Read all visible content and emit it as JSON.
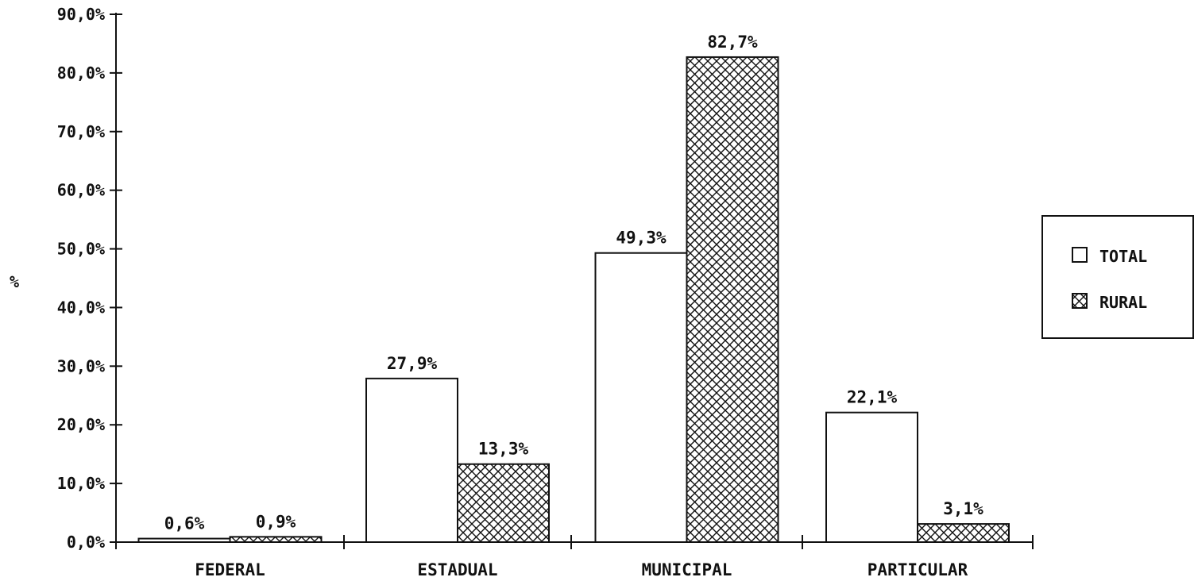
{
  "chart_data": {
    "type": "bar",
    "ylabel": "%",
    "ylim": [
      0,
      90
    ],
    "yticks": [
      "0,0%",
      "10,0%",
      "20,0%",
      "30,0%",
      "40,0%",
      "50,0%",
      "60,0%",
      "70,0%",
      "80,0%",
      "90,0%"
    ],
    "categories": [
      "FEDERAL",
      "ESTADUAL",
      "MUNICIPAL",
      "PARTICULAR"
    ],
    "series": [
      {
        "name": "TOTAL",
        "values": [
          0.6,
          27.9,
          49.3,
          22.1
        ],
        "labels": [
          "0,6%",
          "27,9%",
          "49,3%",
          "22,1%"
        ],
        "pattern": "white"
      },
      {
        "name": "RURAL",
        "values": [
          0.9,
          13.3,
          82.7,
          3.1
        ],
        "labels": [
          "0,9%",
          "13,3%",
          "82,7%",
          "3,1%"
        ],
        "pattern": "crosshatch"
      }
    ],
    "legend": "right",
    "grid": false
  }
}
